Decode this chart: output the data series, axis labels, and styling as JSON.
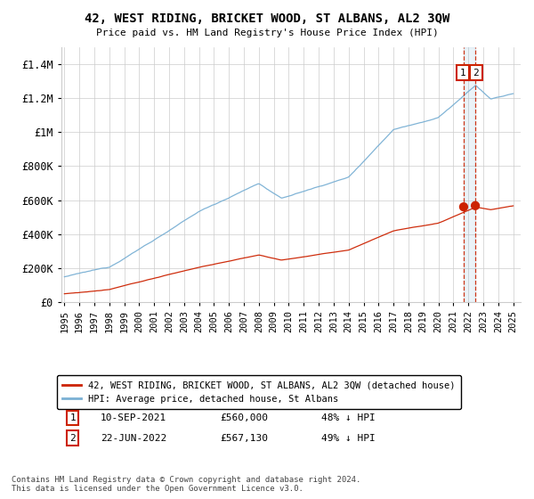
{
  "title": "42, WEST RIDING, BRICKET WOOD, ST ALBANS, AL2 3QW",
  "subtitle": "Price paid vs. HM Land Registry's House Price Index (HPI)",
  "ylabel_ticks": [
    "£0",
    "£200K",
    "£400K",
    "£600K",
    "£800K",
    "£1M",
    "£1.2M",
    "£1.4M"
  ],
  "ytick_values": [
    0,
    200000,
    400000,
    600000,
    800000,
    1000000,
    1200000,
    1400000
  ],
  "ylim": [
    0,
    1500000
  ],
  "xlim_start": 1994.8,
  "xlim_end": 2025.5,
  "xtick_years": [
    1995,
    1996,
    1997,
    1998,
    1999,
    2000,
    2001,
    2002,
    2003,
    2004,
    2005,
    2006,
    2007,
    2008,
    2009,
    2010,
    2011,
    2012,
    2013,
    2014,
    2015,
    2016,
    2017,
    2018,
    2019,
    2020,
    2021,
    2022,
    2023,
    2024,
    2025
  ],
  "hpi_color": "#7ab0d4",
  "price_color": "#cc2200",
  "marker_color": "#cc2200",
  "dashed_line_color": "#cc2200",
  "background_color": "#ffffff",
  "grid_color": "#cccccc",
  "transaction1_date": "10-SEP-2021",
  "transaction1_price": "£560,000",
  "transaction1_hpi": "48% ↓ HPI",
  "transaction1_x": 2021.69,
  "transaction2_date": "22-JUN-2022",
  "transaction2_price": "£567,130",
  "transaction2_hpi": "49% ↓ HPI",
  "transaction2_x": 2022.47,
  "footnote": "Contains HM Land Registry data © Crown copyright and database right 2024.\nThis data is licensed under the Open Government Licence v3.0.",
  "legend_line1": "42, WEST RIDING, BRICKET WOOD, ST ALBANS, AL2 3QW (detached house)",
  "legend_line2": "HPI: Average price, detached house, St Albans"
}
